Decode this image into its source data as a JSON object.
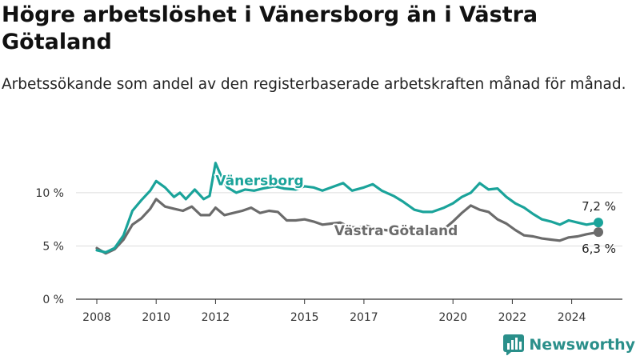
{
  "title": "Högre arbetslöshet i Vänersborg än i Västra Götaland",
  "subtitle": "Arbetssökande som andel av den registerbaserade arbetskraften månad för månad.",
  "brand": {
    "name": "Newsworthy",
    "icon": "bar-chart-logo-icon"
  },
  "colors": {
    "vanersborg": "#1aa39a",
    "vastra_gotaland": "#6b6b6b",
    "grid": "#dddddd",
    "axis": "#333333"
  },
  "chart_data": {
    "type": "line",
    "xlabel": "",
    "ylabel": "",
    "ylim": [
      0,
      13
    ],
    "yticks": [
      {
        "value": 0,
        "label": "0 %"
      },
      {
        "value": 5,
        "label": "5 %"
      },
      {
        "value": 10,
        "label": "10 %"
      }
    ],
    "xticks": [
      {
        "value": 2008,
        "label": "2008"
      },
      {
        "value": 2010,
        "label": "2010"
      },
      {
        "value": 2012,
        "label": "2012"
      },
      {
        "value": 2015,
        "label": "2015"
      },
      {
        "value": 2017,
        "label": "2017"
      },
      {
        "value": 2020,
        "label": "2020"
      },
      {
        "value": 2022,
        "label": "2022"
      },
      {
        "value": 2024,
        "label": "2024"
      }
    ],
    "xlim": [
      2008.0,
      2024.9
    ],
    "grid": true,
    "series": [
      {
        "name": "Vänersborg",
        "key": "vanersborg",
        "end_label": "7,2 %",
        "points": [
          [
            2008.0,
            4.6
          ],
          [
            2008.3,
            4.4
          ],
          [
            2008.6,
            4.8
          ],
          [
            2008.9,
            6.0
          ],
          [
            2009.2,
            8.3
          ],
          [
            2009.5,
            9.3
          ],
          [
            2009.8,
            10.2
          ],
          [
            2010.0,
            11.1
          ],
          [
            2010.3,
            10.5
          ],
          [
            2010.6,
            9.6
          ],
          [
            2010.8,
            10.0
          ],
          [
            2011.0,
            9.4
          ],
          [
            2011.3,
            10.3
          ],
          [
            2011.6,
            9.4
          ],
          [
            2011.8,
            9.7
          ],
          [
            2012.0,
            12.8
          ],
          [
            2012.2,
            11.5
          ],
          [
            2012.4,
            10.5
          ],
          [
            2012.7,
            10.0
          ],
          [
            2013.0,
            10.3
          ],
          [
            2013.3,
            10.2
          ],
          [
            2013.6,
            10.4
          ],
          [
            2014.0,
            10.6
          ],
          [
            2014.3,
            10.4
          ],
          [
            2014.7,
            10.3
          ],
          [
            2015.0,
            10.6
          ],
          [
            2015.3,
            10.5
          ],
          [
            2015.6,
            10.2
          ],
          [
            2015.9,
            10.5
          ],
          [
            2016.3,
            10.9
          ],
          [
            2016.6,
            10.2
          ],
          [
            2017.0,
            10.5
          ],
          [
            2017.3,
            10.8
          ],
          [
            2017.6,
            10.2
          ],
          [
            2018.0,
            9.7
          ],
          [
            2018.3,
            9.2
          ],
          [
            2018.7,
            8.4
          ],
          [
            2019.0,
            8.2
          ],
          [
            2019.3,
            8.2
          ],
          [
            2019.7,
            8.6
          ],
          [
            2020.0,
            9.0
          ],
          [
            2020.3,
            9.6
          ],
          [
            2020.6,
            10.0
          ],
          [
            2020.9,
            10.9
          ],
          [
            2021.2,
            10.3
          ],
          [
            2021.5,
            10.4
          ],
          [
            2021.8,
            9.6
          ],
          [
            2022.1,
            9.0
          ],
          [
            2022.4,
            8.6
          ],
          [
            2022.7,
            8.0
          ],
          [
            2023.0,
            7.5
          ],
          [
            2023.3,
            7.3
          ],
          [
            2023.6,
            7.0
          ],
          [
            2023.9,
            7.4
          ],
          [
            2024.2,
            7.2
          ],
          [
            2024.5,
            7.0
          ],
          [
            2024.9,
            7.2
          ]
        ]
      },
      {
        "name": "Västra Götaland",
        "key": "vastra_gotaland",
        "end_label": "6,3 %",
        "points": [
          [
            2008.0,
            4.8
          ],
          [
            2008.3,
            4.3
          ],
          [
            2008.6,
            4.7
          ],
          [
            2008.9,
            5.6
          ],
          [
            2009.2,
            7.0
          ],
          [
            2009.5,
            7.6
          ],
          [
            2009.8,
            8.5
          ],
          [
            2010.0,
            9.4
          ],
          [
            2010.3,
            8.7
          ],
          [
            2010.6,
            8.5
          ],
          [
            2010.9,
            8.3
          ],
          [
            2011.2,
            8.7
          ],
          [
            2011.5,
            7.9
          ],
          [
            2011.8,
            7.9
          ],
          [
            2012.0,
            8.6
          ],
          [
            2012.3,
            7.9
          ],
          [
            2012.6,
            8.1
          ],
          [
            2012.9,
            8.3
          ],
          [
            2013.2,
            8.6
          ],
          [
            2013.5,
            8.1
          ],
          [
            2013.8,
            8.3
          ],
          [
            2014.1,
            8.2
          ],
          [
            2014.4,
            7.4
          ],
          [
            2014.7,
            7.4
          ],
          [
            2015.0,
            7.5
          ],
          [
            2015.3,
            7.3
          ],
          [
            2015.6,
            7.0
          ],
          [
            2015.9,
            7.1
          ],
          [
            2016.2,
            7.2
          ],
          [
            2016.5,
            6.8
          ],
          [
            2016.8,
            6.7
          ],
          [
            2017.1,
            6.9
          ],
          [
            2017.4,
            6.6
          ],
          [
            2017.7,
            6.5
          ],
          [
            2018.0,
            6.4
          ],
          [
            2018.3,
            6.3
          ],
          [
            2018.7,
            6.1
          ],
          [
            2019.0,
            6.0
          ],
          [
            2019.3,
            6.2
          ],
          [
            2019.7,
            6.6
          ],
          [
            2020.0,
            7.3
          ],
          [
            2020.3,
            8.1
          ],
          [
            2020.6,
            8.8
          ],
          [
            2020.9,
            8.4
          ],
          [
            2021.2,
            8.2
          ],
          [
            2021.5,
            7.5
          ],
          [
            2021.8,
            7.1
          ],
          [
            2022.1,
            6.5
          ],
          [
            2022.4,
            6.0
          ],
          [
            2022.7,
            5.9
          ],
          [
            2023.0,
            5.7
          ],
          [
            2023.3,
            5.6
          ],
          [
            2023.6,
            5.5
          ],
          [
            2023.9,
            5.8
          ],
          [
            2024.2,
            5.9
          ],
          [
            2024.5,
            6.1
          ],
          [
            2024.9,
            6.3
          ]
        ]
      }
    ]
  }
}
